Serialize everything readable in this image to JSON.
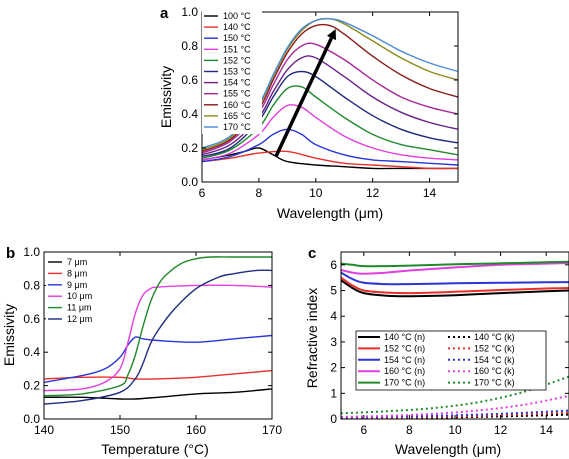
{
  "chart_data": [
    {
      "panel": "a",
      "type": "line",
      "xlabel": "Wavelength (μm)",
      "ylabel": "Emissivity",
      "xlim": [
        6,
        15
      ],
      "ylim": [
        0,
        1.0
      ],
      "xticks": [
        6,
        8,
        10,
        12,
        14
      ],
      "yticks": [
        0.0,
        0.2,
        0.4,
        0.6,
        0.8,
        1.0
      ],
      "legend_position": "top-left",
      "annotations": [
        "black arrow from 100 °C curve toward 170 °C peak"
      ],
      "series": [
        {
          "name": "100 °C",
          "color": "#000000",
          "x": [
            6,
            7,
            7.5,
            8,
            8.5,
            9,
            10,
            11,
            12,
            13,
            14,
            15
          ],
          "y": [
            0.13,
            0.16,
            0.18,
            0.2,
            0.16,
            0.12,
            0.1,
            0.09,
            0.08,
            0.08,
            0.08,
            0.08
          ]
        },
        {
          "name": "140 °C",
          "color": "#e8302a",
          "x": [
            6,
            7,
            8,
            9,
            10,
            11,
            12,
            13,
            14,
            15
          ],
          "y": [
            0.12,
            0.14,
            0.17,
            0.18,
            0.14,
            0.11,
            0.1,
            0.09,
            0.08,
            0.08
          ]
        },
        {
          "name": "150 °C",
          "color": "#2a35d8",
          "x": [
            6,
            7,
            8,
            8.5,
            9,
            9.5,
            10,
            11,
            12,
            13,
            14,
            15
          ],
          "y": [
            0.12,
            0.15,
            0.22,
            0.28,
            0.31,
            0.28,
            0.22,
            0.16,
            0.13,
            0.12,
            0.11,
            0.1
          ]
        },
        {
          "name": "151 °C",
          "color": "#e23ee0",
          "x": [
            6,
            7,
            8,
            8.5,
            9,
            9.5,
            10,
            11,
            12,
            13,
            14,
            15
          ],
          "y": [
            0.13,
            0.17,
            0.28,
            0.38,
            0.45,
            0.44,
            0.38,
            0.27,
            0.2,
            0.16,
            0.14,
            0.13
          ]
        },
        {
          "name": "152 °C",
          "color": "#1f8a2a",
          "x": [
            6,
            7,
            8,
            8.5,
            9,
            9.5,
            10,
            11,
            12,
            13,
            14,
            15
          ],
          "y": [
            0.14,
            0.19,
            0.32,
            0.45,
            0.55,
            0.56,
            0.5,
            0.38,
            0.28,
            0.22,
            0.19,
            0.16
          ]
        },
        {
          "name": "153 °C",
          "color": "#1e2a80",
          "x": [
            6,
            7,
            8,
            8.5,
            9,
            9.5,
            10,
            11,
            12,
            13,
            14,
            15
          ],
          "y": [
            0.15,
            0.2,
            0.36,
            0.5,
            0.62,
            0.65,
            0.62,
            0.5,
            0.39,
            0.31,
            0.26,
            0.23
          ]
        },
        {
          "name": "154 °C",
          "color": "#6a1f8a",
          "x": [
            6,
            7,
            8,
            8.5,
            9,
            9.5,
            10,
            11,
            12,
            13,
            14,
            15
          ],
          "y": [
            0.16,
            0.22,
            0.38,
            0.53,
            0.66,
            0.73,
            0.73,
            0.62,
            0.5,
            0.41,
            0.35,
            0.31
          ]
        },
        {
          "name": "155 °C",
          "color": "#a8279a",
          "x": [
            6,
            7,
            8,
            8.5,
            9,
            9.5,
            10,
            11,
            12,
            13,
            14,
            15
          ],
          "y": [
            0.17,
            0.24,
            0.41,
            0.57,
            0.72,
            0.8,
            0.81,
            0.72,
            0.6,
            0.5,
            0.44,
            0.4
          ]
        },
        {
          "name": "160 °C",
          "color": "#8b1a1a",
          "x": [
            6,
            7,
            8,
            8.5,
            9,
            9.5,
            10,
            10.5,
            11,
            12,
            13,
            14,
            15
          ],
          "y": [
            0.18,
            0.25,
            0.43,
            0.6,
            0.76,
            0.87,
            0.92,
            0.92,
            0.87,
            0.74,
            0.63,
            0.55,
            0.5
          ]
        },
        {
          "name": "165 °C",
          "color": "#8b8b1a",
          "x": [
            6,
            7,
            8,
            8.5,
            9,
            9.5,
            10,
            10.5,
            11,
            12,
            13,
            14,
            15
          ],
          "y": [
            0.19,
            0.26,
            0.45,
            0.62,
            0.78,
            0.89,
            0.95,
            0.96,
            0.93,
            0.83,
            0.73,
            0.65,
            0.6
          ]
        },
        {
          "name": "170 °C",
          "color": "#4a8ad8",
          "x": [
            6,
            7,
            8,
            8.5,
            9,
            9.5,
            10,
            10.5,
            11,
            12,
            13,
            14,
            15
          ],
          "y": [
            0.2,
            0.27,
            0.46,
            0.63,
            0.79,
            0.9,
            0.95,
            0.96,
            0.94,
            0.86,
            0.77,
            0.7,
            0.65
          ]
        }
      ]
    },
    {
      "panel": "b",
      "type": "line",
      "xlabel": "Temperature (°C)",
      "ylabel": "Emissivity",
      "xlim": [
        140,
        170
      ],
      "ylim": [
        0,
        1.0
      ],
      "xticks": [
        140,
        150,
        160,
        170
      ],
      "yticks": [
        0.0,
        0.2,
        0.4,
        0.6,
        0.8,
        1.0
      ],
      "legend_position": "top-left",
      "series": [
        {
          "name": "7 μm",
          "color": "#000000",
          "x": [
            140,
            145,
            150,
            152,
            155,
            160,
            165,
            170
          ],
          "y": [
            0.13,
            0.13,
            0.12,
            0.12,
            0.13,
            0.15,
            0.16,
            0.18
          ]
        },
        {
          "name": "8 μm",
          "color": "#e8302a",
          "x": [
            140,
            145,
            150,
            152,
            155,
            160,
            165,
            170
          ],
          "y": [
            0.24,
            0.25,
            0.25,
            0.24,
            0.24,
            0.25,
            0.27,
            0.29
          ]
        },
        {
          "name": "9 μm",
          "color": "#2a35d8",
          "x": [
            140,
            145,
            148,
            150,
            151,
            152,
            153,
            155,
            160,
            165,
            170
          ],
          "y": [
            0.22,
            0.26,
            0.3,
            0.37,
            0.44,
            0.49,
            0.48,
            0.47,
            0.46,
            0.48,
            0.5
          ]
        },
        {
          "name": "10 μm",
          "color": "#e23ee0",
          "x": [
            140,
            145,
            148,
            150,
            151,
            152,
            153,
            154,
            155,
            160,
            165,
            170
          ],
          "y": [
            0.17,
            0.18,
            0.22,
            0.3,
            0.45,
            0.63,
            0.74,
            0.78,
            0.79,
            0.8,
            0.8,
            0.79
          ]
        },
        {
          "name": "11 μm",
          "color": "#1f8a2a",
          "x": [
            140,
            145,
            150,
            151,
            152,
            153,
            154,
            155,
            156,
            158,
            160,
            162,
            165,
            170
          ],
          "y": [
            0.14,
            0.15,
            0.2,
            0.26,
            0.38,
            0.55,
            0.7,
            0.8,
            0.86,
            0.93,
            0.96,
            0.97,
            0.97,
            0.97
          ]
        },
        {
          "name": "12 μm",
          "color": "#1e2a80",
          "x": [
            140,
            145,
            150,
            152,
            153,
            154,
            155,
            157,
            160,
            163,
            165,
            168,
            170
          ],
          "y": [
            0.09,
            0.11,
            0.16,
            0.24,
            0.33,
            0.45,
            0.53,
            0.65,
            0.78,
            0.85,
            0.87,
            0.89,
            0.89
          ]
        }
      ]
    },
    {
      "panel": "c",
      "type": "line",
      "xlabel": "Wavelength (μm)",
      "ylabel": "Refractive index",
      "xlim": [
        5,
        15
      ],
      "ylim": [
        0,
        6.5
      ],
      "xticks": [
        6,
        8,
        10,
        12,
        14
      ],
      "yticks": [
        0,
        1,
        2,
        3,
        4,
        5,
        6
      ],
      "legend_position": "center",
      "series": [
        {
          "name": "140 °C (n)",
          "color": "#000000",
          "style": "solid",
          "x": [
            5,
            5.5,
            6,
            7,
            8,
            10,
            12,
            14,
            15
          ],
          "y": [
            5.4,
            5.1,
            4.9,
            4.8,
            4.78,
            4.82,
            4.9,
            4.97,
            5.0
          ]
        },
        {
          "name": "152 °C (n)",
          "color": "#e8302a",
          "style": "solid",
          "x": [
            5,
            5.5,
            6,
            7,
            8,
            10,
            12,
            14,
            15
          ],
          "y": [
            5.5,
            5.2,
            5.0,
            4.92,
            4.9,
            4.95,
            5.02,
            5.08,
            5.1
          ]
        },
        {
          "name": "154 °C (n)",
          "color": "#2a35d8",
          "style": "solid",
          "x": [
            5,
            5.5,
            6,
            7,
            8,
            10,
            12,
            14,
            15
          ],
          "y": [
            5.7,
            5.45,
            5.3,
            5.25,
            5.25,
            5.28,
            5.3,
            5.32,
            5.33
          ]
        },
        {
          "name": "160 °C (n)",
          "color": "#e23ee0",
          "style": "solid",
          "x": [
            5,
            5.5,
            6,
            7,
            8,
            10,
            12,
            14,
            15
          ],
          "y": [
            5.8,
            5.7,
            5.65,
            5.7,
            5.78,
            5.9,
            6.0,
            6.05,
            6.07
          ]
        },
        {
          "name": "170 °C (n)",
          "color": "#1f8a2a",
          "style": "solid",
          "x": [
            5,
            5.5,
            6,
            7,
            8,
            10,
            12,
            14,
            15
          ],
          "y": [
            6.05,
            6.0,
            5.95,
            5.95,
            5.97,
            6.02,
            6.06,
            6.1,
            6.12
          ]
        },
        {
          "name": "140 °C (k)",
          "color": "#000000",
          "style": "dotted",
          "x": [
            5,
            7,
            9,
            11,
            13,
            15
          ],
          "y": [
            0.02,
            0.03,
            0.05,
            0.08,
            0.12,
            0.17
          ]
        },
        {
          "name": "152 °C (k)",
          "color": "#e8302a",
          "style": "dotted",
          "x": [
            5,
            7,
            9,
            11,
            13,
            15
          ],
          "y": [
            0.03,
            0.05,
            0.08,
            0.12,
            0.18,
            0.25
          ]
        },
        {
          "name": "154 °C (k)",
          "color": "#2a35d8",
          "style": "dotted",
          "x": [
            5,
            7,
            9,
            11,
            13,
            15
          ],
          "y": [
            0.06,
            0.08,
            0.12,
            0.17,
            0.24,
            0.33
          ]
        },
        {
          "name": "160 °C (k)",
          "color": "#e23ee0",
          "style": "dotted",
          "x": [
            5,
            7,
            9,
            11,
            13,
            15
          ],
          "y": [
            0.08,
            0.12,
            0.2,
            0.33,
            0.55,
            0.9
          ]
        },
        {
          "name": "170 °C (k)",
          "color": "#1f8a2a",
          "style": "dotted",
          "x": [
            5,
            7,
            9,
            11,
            13,
            15
          ],
          "y": [
            0.22,
            0.3,
            0.42,
            0.65,
            1.05,
            1.65
          ]
        }
      ]
    }
  ]
}
